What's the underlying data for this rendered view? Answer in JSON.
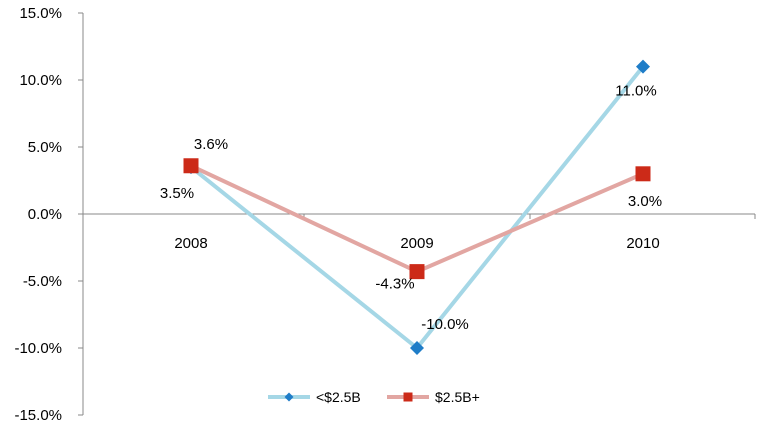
{
  "chart_data": {
    "type": "line",
    "title": "",
    "xlabel": "",
    "ylabel": "",
    "categories": [
      "2008",
      "2009",
      "2010"
    ],
    "ylim": [
      -15,
      15
    ],
    "y_ticks": [
      15,
      10,
      5,
      0,
      -5,
      -10,
      -15
    ],
    "y_tick_labels": [
      "15.0%",
      "10.0%",
      "5.0%",
      "0.0%",
      "-5.0%",
      "-10.0%",
      "-15.0%"
    ],
    "grid": false,
    "legend_position": "bottom-center",
    "series": [
      {
        "name": "<$2.5B",
        "values": [
          3.5,
          -10.0,
          11.0
        ],
        "data_labels": [
          "3.5%",
          "-10.0%",
          "11.0%"
        ],
        "line_color": "#a5d7e6",
        "marker_color": "#1f7dc8",
        "marker": "diamond"
      },
      {
        "name": "$2.5B+",
        "values": [
          3.6,
          -4.3,
          3.0
        ],
        "data_labels": [
          "3.6%",
          "-4.3%",
          "3.0%"
        ],
        "line_color": "#e2a6a2",
        "marker_color": "#cc2a18",
        "marker": "square"
      }
    ]
  }
}
